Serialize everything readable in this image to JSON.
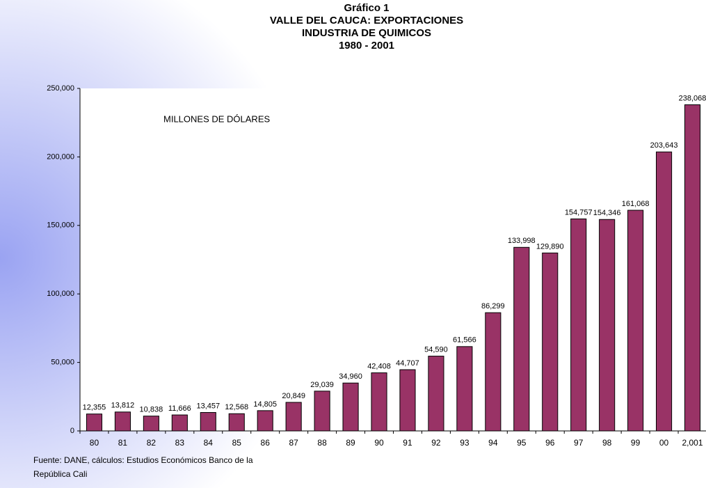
{
  "chart_data": {
    "type": "bar",
    "title": [
      "Gráfico 1",
      "VALLE DEL CAUCA: EXPORTACIONES",
      "INDUSTRIA DE QUIMICOS",
      "1980 - 2001"
    ],
    "annotation": "MILLONES DE DÓLARES",
    "note": [
      "Fuente: DANE, cálculos: Estudios Económicos Banco de la",
      "República Cali"
    ],
    "categories": [
      "80",
      "81",
      "82",
      "83",
      "84",
      "85",
      "86",
      "87",
      "88",
      "89",
      "90",
      "91",
      "92",
      "93",
      "94",
      "95",
      "96",
      "97",
      "98",
      "99",
      "00",
      "2,001"
    ],
    "values": [
      12355,
      13812,
      10838,
      11666,
      13457,
      12568,
      14805,
      20849,
      29039,
      34960,
      42408,
      44707,
      54590,
      61566,
      86299,
      133998,
      129890,
      154757,
      154346,
      161068,
      203643,
      238068
    ],
    "value_labels": [
      "12,355",
      "13,812",
      "10,838",
      "11,666",
      "13,457",
      "12,568",
      "14,805",
      "20,849",
      "29,039",
      "34,960",
      "42,408",
      "44,707",
      "54,590",
      "61,566",
      "86,299",
      "133,998",
      "129,890",
      "154,757",
      "154,346",
      "161,068",
      "203,643",
      "238,068"
    ],
    "color": "#993366",
    "ylim": [
      0,
      250000
    ],
    "yticks": [
      0,
      {
        "value": 50000,
        "label": "50,000"
      },
      {
        "value": 100000,
        "label": "100,000"
      },
      {
        "value": 150000,
        "label": "150,000"
      },
      {
        "value": 200000,
        "label": "200,000"
      },
      {
        "value": 250000,
        "label": "250,000"
      }
    ]
  }
}
